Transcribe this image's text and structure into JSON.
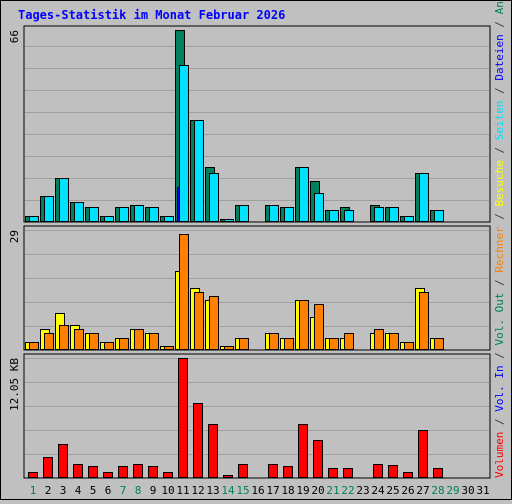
{
  "chart_data": {
    "type": "bar",
    "title": "Tages-Statistik im Monat Februar 2026",
    "categories": [
      "1",
      "2",
      "3",
      "4",
      "5",
      "6",
      "7",
      "8",
      "9",
      "10",
      "11",
      "12",
      "13",
      "14",
      "15",
      "16",
      "17",
      "18",
      "19",
      "20",
      "21",
      "22",
      "23",
      "24",
      "25",
      "26",
      "27",
      "28",
      "29",
      "30",
      "31"
    ],
    "weekend_days": [
      "1",
      "7",
      "8",
      "14",
      "15",
      "21",
      "22",
      "28",
      "29"
    ],
    "panels": [
      {
        "id": "top",
        "ymax_label": "66",
        "ylim": [
          0,
          66
        ],
        "series": [
          {
            "name": "Anfragen",
            "color": "#00805c",
            "values": [
              2,
              9,
              15,
              7,
              5,
              2,
              5,
              6,
              5,
              2,
              66,
              35,
              19,
              1,
              6,
              0,
              6,
              5,
              19,
              14,
              4,
              5,
              0,
              6,
              5,
              2,
              17,
              4,
              0,
              0,
              0
            ]
          },
          {
            "name": "Dateien",
            "color": "#0000ff",
            "values": [
              0,
              0,
              0,
              0,
              0,
              0,
              0,
              0,
              0,
              0,
              12,
              0,
              0,
              0,
              0,
              0,
              0,
              0,
              0,
              0,
              0,
              0,
              0,
              0,
              0,
              0,
              0,
              0,
              0,
              0,
              0
            ]
          },
          {
            "name": "Seiten",
            "color": "#00e0ff",
            "values": [
              2,
              9,
              15,
              7,
              5,
              2,
              5,
              6,
              5,
              2,
              54,
              35,
              17,
              1,
              6,
              0,
              6,
              5,
              19,
              10,
              4,
              4,
              0,
              5,
              5,
              2,
              17,
              4,
              0,
              0,
              0
            ]
          }
        ]
      },
      {
        "id": "middle",
        "ymax_label": "29",
        "ylim": [
          0,
          29
        ],
        "series": [
          {
            "name": "Besuche",
            "color": "#ffff00",
            "values": [
              2,
              5,
              9,
              6,
              4,
              2,
              3,
              5,
              4,
              1,
              19,
              15,
              12,
              1,
              3,
              0,
              4,
              3,
              12,
              8,
              3,
              3,
              0,
              4,
              4,
              2,
              15,
              3,
              0,
              0,
              0
            ]
          },
          {
            "name": "Rechner",
            "color": "#ff8000",
            "values": [
              2,
              4,
              6,
              5,
              4,
              2,
              3,
              5,
              4,
              1,
              28,
              14,
              13,
              1,
              3,
              0,
              4,
              3,
              12,
              11,
              3,
              4,
              0,
              5,
              4,
              2,
              14,
              3,
              0,
              0,
              0
            ]
          }
        ]
      },
      {
        "id": "bottom",
        "ymax_label": "12.05 KB",
        "ylim": [
          0,
          12.05
        ],
        "series": [
          {
            "name": "Volumen",
            "color": "#ff0000",
            "values": [
              0.6,
              2.1,
              3.4,
              1.4,
              1.2,
              0.6,
              1.2,
              1.4,
              1.2,
              0.6,
              12.05,
              7.5,
              5.4,
              0.3,
              1.4,
              0,
              1.4,
              1.2,
              5.4,
              3.8,
              1.0,
              1.0,
              0,
              1.4,
              1.3,
              0.6,
              4.8,
              1.0,
              0,
              0,
              0
            ]
          }
        ]
      }
    ],
    "right_legend": [
      {
        "text": "Volumen",
        "color": "#ff0000"
      },
      {
        "text": " / ",
        "color": "#404040"
      },
      {
        "text": "Vol. In",
        "color": "#0000ff"
      },
      {
        "text": " / ",
        "color": "#404040"
      },
      {
        "text": "Vol. Out",
        "color": "#00805c"
      },
      {
        "text": " / ",
        "color": "#404040"
      },
      {
        "text": "Rechner",
        "color": "#ff8000"
      },
      {
        "text": " / ",
        "color": "#404040"
      },
      {
        "text": "Besuche",
        "color": "#ffff00"
      },
      {
        "text": " / ",
        "color": "#404040"
      },
      {
        "text": "Seiten",
        "color": "#00e0ff"
      },
      {
        "text": " / ",
        "color": "#404040"
      },
      {
        "text": "Dateien",
        "color": "#0000ff"
      },
      {
        "text": " / ",
        "color": "#404040"
      },
      {
        "text": "Anfragen",
        "color": "#00805c"
      }
    ],
    "colors": {
      "background": "#c0c0c0",
      "title": "#0000ff",
      "gridline": "#a0a0a0",
      "axis_label": "#000000",
      "weekday_label": "#000000",
      "weekend_label": "#00805c"
    },
    "grid": true
  }
}
